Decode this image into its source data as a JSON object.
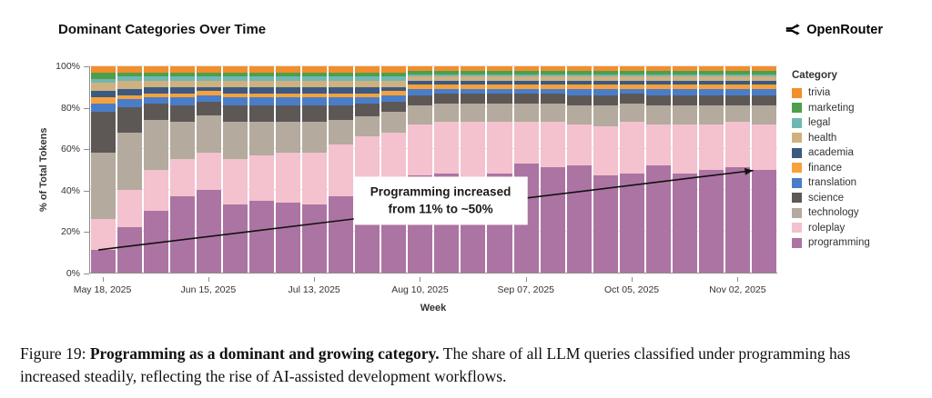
{
  "header": {
    "brand": "OpenRouter"
  },
  "chart_data": {
    "type": "bar",
    "stacked": true,
    "normalized": true,
    "title": "Dominant Categories Over Time",
    "xlabel": "Week",
    "ylabel": "% of Total Tokens",
    "ylim": [
      0,
      100
    ],
    "grid": true,
    "legend_title": "Category",
    "legend_position": "right",
    "weeks": [
      "May 18, 2025",
      "May 25, 2025",
      "Jun 01, 2025",
      "Jun 08, 2025",
      "Jun 15, 2025",
      "Jun 22, 2025",
      "Jun 29, 2025",
      "Jul 06, 2025",
      "Jul 13, 2025",
      "Jul 20, 2025",
      "Jul 27, 2025",
      "Aug 03, 2025",
      "Aug 10, 2025",
      "Aug 17, 2025",
      "Aug 24, 2025",
      "Aug 31, 2025",
      "Sep 07, 2025",
      "Sep 14, 2025",
      "Sep 21, 2025",
      "Sep 28, 2025",
      "Oct 05, 2025",
      "Oct 12, 2025",
      "Oct 19, 2025",
      "Oct 26, 2025",
      "Nov 02, 2025",
      "Nov 09, 2025"
    ],
    "x_ticks": [
      {
        "index": 0,
        "label": "May 18, 2025"
      },
      {
        "index": 4,
        "label": "Jun 15, 2025"
      },
      {
        "index": 8,
        "label": "Jul 13, 2025"
      },
      {
        "index": 12,
        "label": "Aug 10, 2025"
      },
      {
        "index": 16,
        "label": "Sep 07, 2025"
      },
      {
        "index": 20,
        "label": "Oct 05, 2025"
      },
      {
        "index": 24,
        "label": "Nov 02, 2025"
      }
    ],
    "y_ticks": [
      {
        "value": 0,
        "label": "0%"
      },
      {
        "value": 20,
        "label": "20%"
      },
      {
        "value": 40,
        "label": "40%"
      },
      {
        "value": 60,
        "label": "60%"
      },
      {
        "value": 80,
        "label": "80%"
      },
      {
        "value": 100,
        "label": "100%"
      }
    ],
    "stack_order": "bottom-to-top",
    "series": [
      {
        "name": "programming",
        "color": "#ac74a2",
        "values": [
          11,
          22,
          30,
          37,
          40,
          33,
          35,
          34,
          33,
          37,
          41,
          45,
          47,
          48,
          46,
          48,
          53,
          51,
          52,
          47,
          48,
          52,
          48,
          50,
          51,
          50
        ]
      },
      {
        "name": "roleplay",
        "color": "#f4c1ce",
        "values": [
          15,
          18,
          20,
          18,
          18,
          22,
          22,
          24,
          25,
          25,
          25,
          23,
          25,
          25,
          27,
          25,
          20,
          22,
          20,
          24,
          25,
          20,
          24,
          22,
          22,
          22
        ]
      },
      {
        "name": "technology",
        "color": "#b4aa9e",
        "values": [
          32,
          28,
          24,
          18,
          18,
          18,
          16,
          15,
          15,
          12,
          10,
          10,
          9,
          9,
          9,
          9,
          9,
          9,
          9,
          10,
          9,
          9,
          9,
          9,
          8,
          9
        ]
      },
      {
        "name": "science",
        "color": "#5d5856",
        "values": [
          20,
          12,
          8,
          8,
          7,
          8,
          8,
          8,
          8,
          7,
          6,
          5,
          5,
          5,
          5,
          5,
          5,
          5,
          5,
          5,
          5,
          5,
          5,
          5,
          5,
          5
        ]
      },
      {
        "name": "translation",
        "color": "#4a7dc9",
        "values": [
          4,
          4,
          3,
          4,
          3,
          4,
          4,
          4,
          4,
          4,
          3,
          3,
          3,
          2,
          2,
          2,
          2,
          2,
          3,
          3,
          2,
          3,
          3,
          3,
          3,
          3
        ]
      },
      {
        "name": "finance",
        "color": "#f7a13c",
        "values": [
          3,
          2,
          2,
          2,
          2,
          2,
          2,
          2,
          2,
          2,
          2,
          2,
          2,
          2,
          2,
          2,
          2,
          2,
          2,
          2,
          2,
          2,
          2,
          2,
          2,
          2
        ]
      },
      {
        "name": "academia",
        "color": "#3b5a82",
        "values": [
          3,
          3,
          3,
          3,
          2,
          3,
          3,
          3,
          3,
          3,
          3,
          2,
          2,
          2,
          2,
          2,
          2,
          2,
          2,
          2,
          2,
          2,
          2,
          2,
          2,
          2
        ]
      },
      {
        "name": "health",
        "color": "#cfb07f",
        "values": [
          4,
          4,
          3,
          3,
          3,
          3,
          3,
          3,
          3,
          3,
          3,
          3,
          2,
          2,
          2,
          2,
          2,
          2,
          2,
          2,
          2,
          2,
          2,
          2,
          2,
          2
        ]
      },
      {
        "name": "legal",
        "color": "#6fb8b2",
        "values": [
          2,
          2,
          2,
          2,
          2,
          2,
          2,
          2,
          2,
          2,
          2,
          2,
          1,
          1,
          1,
          1,
          1,
          1,
          1,
          1,
          1,
          1,
          1,
          1,
          1,
          1
        ]
      },
      {
        "name": "marketing",
        "color": "#4f9e4c",
        "values": [
          3,
          2,
          2,
          2,
          2,
          2,
          2,
          2,
          2,
          2,
          2,
          2,
          2,
          2,
          2,
          2,
          2,
          2,
          2,
          2,
          2,
          2,
          2,
          2,
          2,
          2
        ]
      },
      {
        "name": "trivia",
        "color": "#f28e2c",
        "values": [
          3,
          3,
          3,
          3,
          3,
          3,
          3,
          3,
          3,
          3,
          3,
          3,
          2,
          2,
          2,
          2,
          2,
          2,
          2,
          2,
          2,
          2,
          2,
          2,
          2,
          2
        ]
      }
    ],
    "annotation": {
      "line1": "Programming increased",
      "line2": "from 11% to ~50%",
      "arrow": {
        "from": {
          "x_frac": 0.012,
          "pct": 11
        },
        "to": {
          "x_frac": 0.965,
          "pct": 49.5
        }
      }
    }
  },
  "caption": {
    "prefix": "Figure 19:",
    "bold": "Programming as a dominant and growing category.",
    "rest": "The share of all LLM queries classified under programming has increased steadily, reflecting the rise of AI-assisted development workflows."
  }
}
